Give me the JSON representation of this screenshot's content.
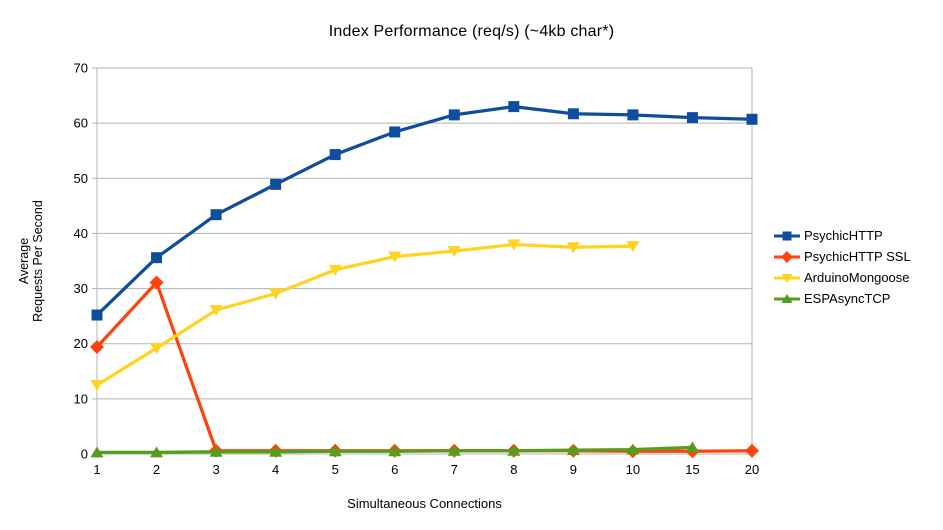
{
  "chart_data": {
    "type": "line",
    "title": "Index Performance (req/s) (~4kb char*)",
    "xlabel": "Simultaneous Connections",
    "ylabel": "Average Requests Per Second",
    "ylabel_lines": [
      "Average",
      "Requests Per Second"
    ],
    "categories": [
      "1",
      "2",
      "3",
      "4",
      "5",
      "6",
      "7",
      "8",
      "9",
      "10",
      "15",
      "20"
    ],
    "y_ticks": [
      0,
      10,
      20,
      30,
      40,
      50,
      60,
      70
    ],
    "ylim": [
      0,
      70
    ],
    "grid": "horizontal-only",
    "legend_position": "right",
    "colors": {
      "gridline": "#b3b3b3",
      "axis": "#b3b3b3",
      "text": "#000000",
      "background": "#ffffff"
    },
    "series": [
      {
        "name": "PsychicHTTP",
        "color": "#0f4e9c",
        "marker": "square",
        "values": [
          25.2,
          35.6,
          43.4,
          48.9,
          54.3,
          58.4,
          61.5,
          63.0,
          61.7,
          61.5,
          61.0,
          60.7
        ]
      },
      {
        "name": "PsychicHTTP SSL",
        "color": "#ff420e",
        "marker": "diamond",
        "values": [
          19.4,
          31.1,
          0.6,
          0.6,
          0.6,
          0.6,
          0.6,
          0.6,
          0.6,
          0.5,
          0.5,
          0.6
        ]
      },
      {
        "name": "ArduinoMongoose",
        "color": "#ffd320",
        "marker": "triangle-down",
        "values": [
          12.5,
          19.2,
          26.1,
          29.1,
          33.4,
          35.8,
          36.8,
          38.0,
          37.5,
          37.7,
          null,
          null
        ]
      },
      {
        "name": "ESPAsyncTCP",
        "color": "#579d1c",
        "marker": "triangle-up",
        "values": [
          0.3,
          0.3,
          0.4,
          0.4,
          0.5,
          0.5,
          0.6,
          0.6,
          0.7,
          0.8,
          1.2,
          null
        ]
      }
    ]
  }
}
